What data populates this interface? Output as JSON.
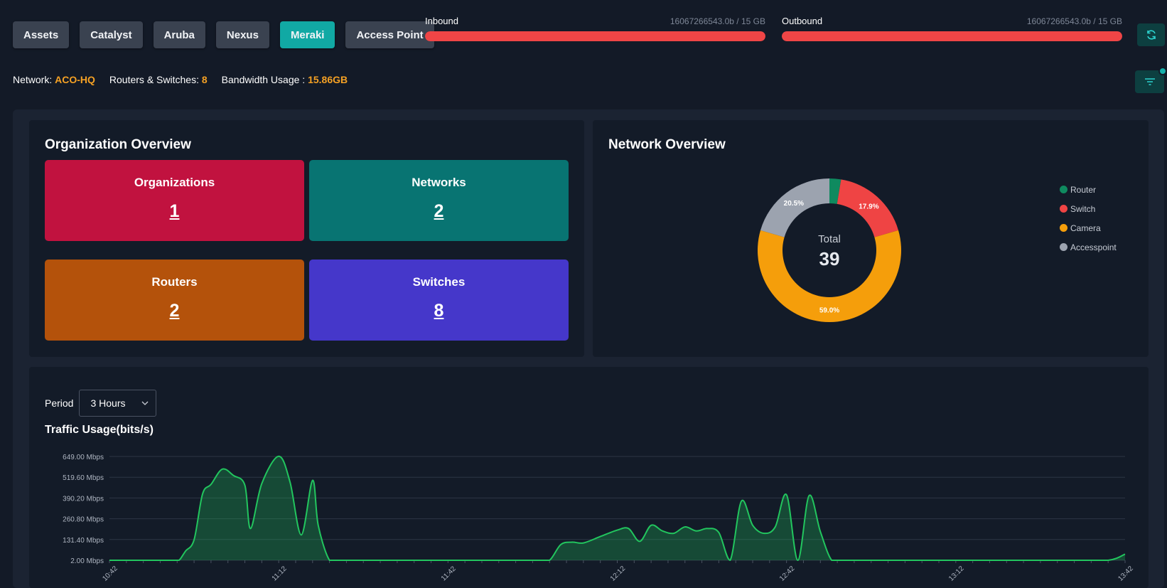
{
  "tabs": [
    {
      "label": "Assets",
      "active": false
    },
    {
      "label": "Catalyst",
      "active": false
    },
    {
      "label": "Aruba",
      "active": false
    },
    {
      "label": "Nexus",
      "active": false
    },
    {
      "label": "Meraki",
      "active": true
    },
    {
      "label": "Access Point",
      "active": false
    }
  ],
  "bandwidth": {
    "inbound": {
      "label": "Inbound",
      "value": "16067266543.0b / 15 GB",
      "fill_fraction": 1.0
    },
    "outbound": {
      "label": "Outbound",
      "value": "16067266543.0b / 15 GB",
      "fill_fraction": 1.0
    }
  },
  "info": {
    "network_label": "Network:",
    "network_value": "ACO-HQ",
    "routers_label": "Routers & Switches:",
    "routers_value": "8",
    "bandwidth_label": "Bandwidth Usage :",
    "bandwidth_value": "15.86GB"
  },
  "org_overview": {
    "title": "Organization Overview",
    "cards": [
      {
        "label": "Organizations",
        "value": "1",
        "color": "#c1123f"
      },
      {
        "label": "Networks",
        "value": "2",
        "color": "#087472"
      },
      {
        "label": "Routers",
        "value": "2",
        "color": "#b4520b"
      },
      {
        "label": "Switches",
        "value": "8",
        "color": "#4537ca"
      }
    ]
  },
  "network_overview": {
    "title": "Network Overview",
    "center_label": "Total",
    "center_value": "39"
  },
  "traffic": {
    "period_label": "Period",
    "period_value": "3 Hours",
    "title": "Traffic Usage(bits/s)"
  },
  "colors": {
    "accent": "#11a9a4",
    "highlight": "#f5a124",
    "danger": "#ef4546",
    "line": "#22c55e"
  },
  "icons": {
    "refresh": "refresh-icon",
    "filter": "filter-icon",
    "dropdown": "chevron-down-icon"
  },
  "chart_data": [
    {
      "type": "pie",
      "donut": true,
      "categories": [
        "Router",
        "Switch",
        "Camera",
        "Accesspoint"
      ],
      "values": [
        2.6,
        17.9,
        59.0,
        20.5
      ],
      "labels": [
        "",
        "17.9%",
        "59.0%",
        "20.5%"
      ],
      "colors": [
        "#0f8a5f",
        "#ef4444",
        "#f59e0b",
        "#9ca3af"
      ],
      "legend": "right"
    },
    {
      "type": "area",
      "title": "Traffic Usage(bits/s)",
      "x_labels": [
        "10:42",
        "11:12",
        "11:42",
        "12:12",
        "12:42",
        "13:12",
        "13:42"
      ],
      "y_ticks": [
        "2.00 Mbps",
        "131.40 Mbps",
        "260.80 Mbps",
        "390.20 Mbps",
        "519.60 Mbps",
        "649.00 Mbps"
      ],
      "ylim": [
        2,
        649
      ],
      "grid": true,
      "x": [
        0,
        6,
        9,
        12,
        12.5,
        13.5,
        15,
        16.5,
        18,
        20,
        22,
        24,
        25,
        27,
        30,
        32,
        34,
        36,
        37,
        39,
        41,
        42,
        43,
        45,
        47,
        50,
        60,
        70,
        76,
        78,
        80,
        82,
        84,
        87,
        90,
        92,
        94,
        96,
        98,
        100,
        102,
        104,
        106,
        108,
        110,
        112,
        114,
        116,
        118,
        120,
        122,
        124,
        126,
        128,
        130,
        132,
        134,
        136,
        138,
        140,
        141,
        143,
        145,
        147,
        150,
        160,
        170,
        177,
        180
      ],
      "values": [
        2,
        2,
        2,
        2,
        8,
        60,
        130,
        415,
        475,
        570,
        530,
        470,
        200,
        480,
        650,
        490,
        160,
        500,
        220,
        2,
        2,
        2,
        2,
        2,
        2,
        2,
        2,
        2,
        2,
        2,
        100,
        115,
        110,
        150,
        190,
        200,
        120,
        220,
        185,
        170,
        210,
        185,
        200,
        175,
        2,
        370,
        220,
        170,
        210,
        410,
        2,
        405,
        180,
        2,
        2,
        2,
        2,
        2,
        2,
        2,
        2,
        2,
        2,
        2,
        2,
        2,
        2,
        2,
        40
      ]
    }
  ]
}
